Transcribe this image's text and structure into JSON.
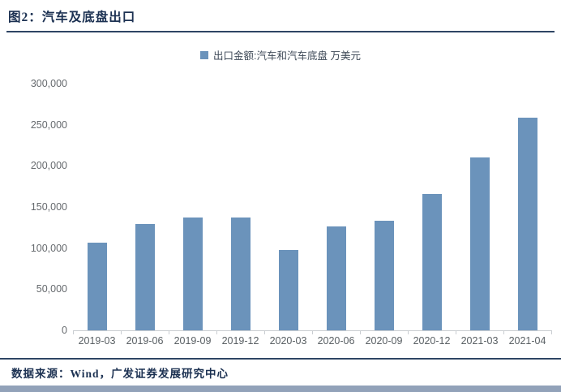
{
  "figure": {
    "title": "图2：汽车及底盘出口",
    "source": "数据来源：Wind，广发证券发展研究中心"
  },
  "chart_data": {
    "type": "bar",
    "title": "图2：汽车及底盘出口",
    "legend": [
      "出口金额:汽车和汽车底盘 万美元"
    ],
    "legend_position": "top-center",
    "categories": [
      "2019-03",
      "2019-06",
      "2019-09",
      "2019-12",
      "2020-03",
      "2020-06",
      "2020-09",
      "2020-12",
      "2021-03",
      "2021-04"
    ],
    "values": [
      107000,
      129000,
      137000,
      137000,
      98000,
      126000,
      133000,
      166000,
      210000,
      259000
    ],
    "xlabel": "",
    "ylabel": "",
    "ylim": [
      0,
      300000
    ],
    "yticks": [
      0,
      50000,
      100000,
      150000,
      200000,
      250000,
      300000
    ],
    "ytick_labels": [
      "0",
      "50,000",
      "100,000",
      "150,000",
      "200,000",
      "250,000",
      "300,000"
    ],
    "grid": false
  },
  "colors": {
    "bar": "#6b93bb",
    "title_text": "#1c3152",
    "rule": "#2e4564",
    "legend_text": "#3f4a58",
    "axis_text": "#5f6468",
    "axis_line": "#c9cdd1",
    "bottom_strip": "#92a2b9"
  }
}
